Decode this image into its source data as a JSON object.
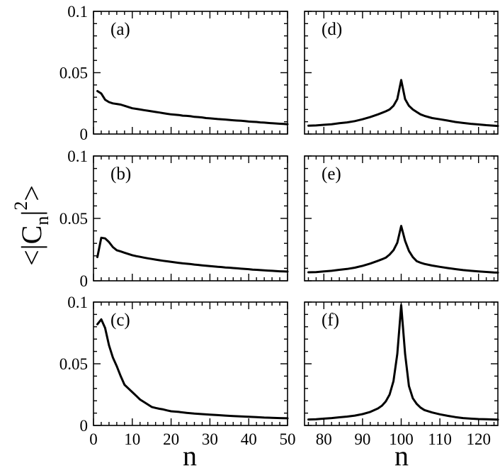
{
  "chart_data": [
    {
      "type": "line",
      "label": "(a)",
      "xlim": [
        0,
        50
      ],
      "ylim": [
        0,
        0.1
      ],
      "yticks": [
        "0",
        "0.05",
        "0.1"
      ],
      "x": [
        1,
        2,
        3,
        4,
        5,
        6,
        7,
        8,
        9,
        10,
        11,
        12,
        13,
        14,
        15,
        16,
        17,
        18,
        19,
        20,
        21,
        22,
        23,
        24,
        25,
        26,
        27,
        28,
        29,
        30,
        31,
        32,
        33,
        34,
        35,
        36,
        37,
        38,
        39,
        40,
        41,
        42,
        43,
        44,
        45,
        46,
        47,
        48,
        49,
        50
      ],
      "values": [
        0.035,
        0.033,
        0.028,
        0.026,
        0.025,
        0.0245,
        0.024,
        0.023,
        0.022,
        0.021,
        0.0205,
        0.02,
        0.0195,
        0.019,
        0.0185,
        0.018,
        0.0175,
        0.017,
        0.0165,
        0.016,
        0.0158,
        0.0155,
        0.015,
        0.0148,
        0.0145,
        0.014,
        0.0138,
        0.0135,
        0.013,
        0.0128,
        0.0125,
        0.0122,
        0.012,
        0.0118,
        0.0115,
        0.0112,
        0.011,
        0.0108,
        0.0105,
        0.0102,
        0.01,
        0.0098,
        0.0095,
        0.0093,
        0.009,
        0.0088,
        0.0086,
        0.0084,
        0.0082,
        0.008
      ]
    },
    {
      "type": "line",
      "label": "(d)",
      "xlim": [
        75,
        125
      ],
      "ylim": [
        0,
        0.1
      ],
      "x": [
        76,
        78,
        80,
        82,
        84,
        86,
        88,
        90,
        92,
        94,
        95,
        96,
        97,
        98,
        99,
        100,
        101,
        102,
        103,
        104,
        105,
        106,
        108,
        110,
        112,
        114,
        116,
        118,
        120,
        122,
        124,
        125
      ],
      "values": [
        0.0068,
        0.007,
        0.0075,
        0.008,
        0.0088,
        0.0095,
        0.0105,
        0.012,
        0.0138,
        0.016,
        0.0172,
        0.0185,
        0.02,
        0.023,
        0.0285,
        0.044,
        0.0285,
        0.023,
        0.02,
        0.018,
        0.016,
        0.0148,
        0.013,
        0.012,
        0.011,
        0.0098,
        0.009,
        0.0083,
        0.0078,
        0.0072,
        0.0068,
        0.0066
      ]
    },
    {
      "type": "line",
      "label": "(b)",
      "xlim": [
        0,
        50
      ],
      "ylim": [
        0,
        0.1
      ],
      "yticks": [
        "0",
        "0.05",
        "0.1"
      ],
      "x": [
        1,
        2,
        3,
        4,
        5,
        6,
        7,
        8,
        9,
        10,
        11,
        12,
        13,
        14,
        15,
        16,
        17,
        18,
        19,
        20,
        21,
        22,
        23,
        24,
        25,
        26,
        27,
        28,
        29,
        30,
        31,
        32,
        33,
        34,
        35,
        36,
        37,
        38,
        39,
        40,
        41,
        42,
        43,
        44,
        45,
        46,
        47,
        48,
        49,
        50
      ],
      "values": [
        0.019,
        0.0345,
        0.034,
        0.031,
        0.027,
        0.0245,
        0.0235,
        0.0225,
        0.0215,
        0.0205,
        0.0198,
        0.0192,
        0.0186,
        0.018,
        0.0175,
        0.017,
        0.0165,
        0.016,
        0.0156,
        0.0152,
        0.0148,
        0.0144,
        0.014,
        0.0137,
        0.0134,
        0.013,
        0.0127,
        0.0124,
        0.0121,
        0.0118,
        0.0115,
        0.0112,
        0.011,
        0.0107,
        0.0105,
        0.0102,
        0.01,
        0.0097,
        0.0095,
        0.0093,
        0.009,
        0.0088,
        0.0086,
        0.0084,
        0.0082,
        0.008,
        0.0078,
        0.0076,
        0.0075,
        0.0074
      ]
    },
    {
      "type": "line",
      "label": "(e)",
      "xlim": [
        75,
        125
      ],
      "ylim": [
        0,
        0.1
      ],
      "x": [
        76,
        78,
        80,
        82,
        84,
        86,
        88,
        90,
        92,
        94,
        95,
        96,
        97,
        98,
        99,
        100,
        101,
        102,
        103,
        104,
        105,
        106,
        108,
        110,
        112,
        114,
        116,
        118,
        120,
        122,
        124,
        125
      ],
      "values": [
        0.0068,
        0.007,
        0.0075,
        0.008,
        0.0088,
        0.0095,
        0.0105,
        0.012,
        0.0138,
        0.016,
        0.0172,
        0.0185,
        0.021,
        0.0245,
        0.0305,
        0.044,
        0.032,
        0.024,
        0.019,
        0.0158,
        0.0145,
        0.0135,
        0.0122,
        0.0112,
        0.0102,
        0.0094,
        0.0086,
        0.008,
        0.0075,
        0.0071,
        0.0067,
        0.0066
      ]
    },
    {
      "type": "line",
      "label": "(c)",
      "xlim": [
        0,
        50
      ],
      "ylim": [
        0,
        0.1
      ],
      "yticks": [
        "0",
        "0.05",
        "0.1"
      ],
      "xticks": [
        "0",
        "10",
        "20",
        "30",
        "40",
        "50"
      ],
      "x": [
        1,
        2,
        3,
        4,
        5,
        6,
        7,
        8,
        9,
        10,
        11,
        12,
        13,
        14,
        15,
        16,
        17,
        18,
        19,
        20,
        22,
        24,
        26,
        28,
        30,
        32,
        34,
        36,
        38,
        40,
        42,
        44,
        46,
        48,
        50
      ],
      "values": [
        0.082,
        0.086,
        0.079,
        0.065,
        0.055,
        0.048,
        0.04,
        0.033,
        0.03,
        0.027,
        0.024,
        0.021,
        0.019,
        0.017,
        0.015,
        0.0142,
        0.0135,
        0.013,
        0.0122,
        0.0115,
        0.011,
        0.0102,
        0.0096,
        0.0092,
        0.0088,
        0.0084,
        0.008,
        0.0076,
        0.0073,
        0.007,
        0.0067,
        0.0064,
        0.0062,
        0.006,
        0.0058
      ]
    },
    {
      "type": "line",
      "label": "(f)",
      "xlim": [
        75,
        125
      ],
      "ylim": [
        0,
        0.1
      ],
      "xticks": [
        "80",
        "90",
        "100",
        "110",
        "120"
      ],
      "x": [
        76,
        78,
        80,
        82,
        84,
        86,
        88,
        90,
        92,
        94,
        95,
        96,
        97,
        98,
        99,
        100,
        101,
        102,
        103,
        104,
        105,
        106,
        108,
        110,
        112,
        114,
        116,
        118,
        120,
        122,
        124,
        125
      ],
      "values": [
        0.0048,
        0.005,
        0.0055,
        0.006,
        0.0066,
        0.0072,
        0.008,
        0.0092,
        0.011,
        0.0138,
        0.016,
        0.0195,
        0.025,
        0.036,
        0.058,
        0.0975,
        0.058,
        0.032,
        0.022,
        0.0175,
        0.0145,
        0.0125,
        0.0105,
        0.009,
        0.0078,
        0.0068,
        0.006,
        0.0055,
        0.0052,
        0.005,
        0.0048,
        0.0047
      ]
    }
  ],
  "xlabel": "n",
  "ylabel": {
    "open": "<|C",
    "sub": "n",
    "mid": "|",
    "sup": "2",
    "close": ">"
  }
}
